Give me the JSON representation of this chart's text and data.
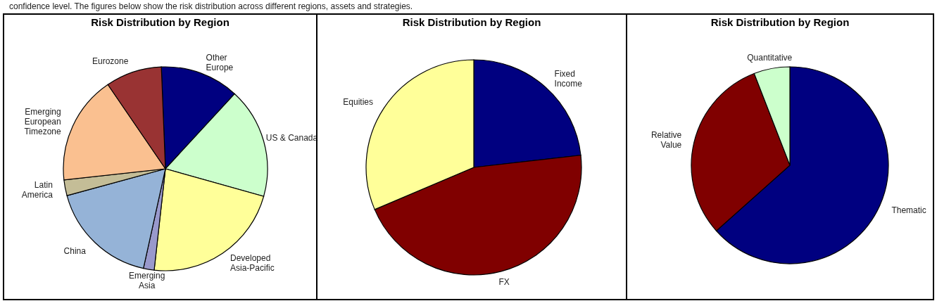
{
  "chart_data": [
    {
      "type": "pie",
      "title": "Risk Distribution by Region",
      "annotations": [
        "confidence level. The figures below show the risk distribution across different regions, assets and strategies."
      ],
      "categories": [
        "Other Europe",
        "US & Canada",
        "Developed Asia-Pacific",
        "Emerging Asia",
        "China",
        "Latin America",
        "Emerging European Timezone",
        "Eurozone"
      ],
      "values": [
        12.5,
        17.5,
        22.4,
        1.7,
        17.3,
        2.5,
        17.2,
        8.9
      ],
      "colors": [
        "#000080",
        "#ccffcc",
        "#ffff99",
        "#9999cc",
        "#95b3d7",
        "#c4bd97",
        "#fac090",
        "#993333"
      ]
    },
    {
      "type": "pie",
      "title": "Risk Distribution by Region",
      "categories": [
        "Fixed Income",
        "FX",
        "Equities"
      ],
      "values": [
        23.2,
        45.4,
        31.4
      ],
      "colors": [
        "#000080",
        "#800000",
        "#ffff99"
      ]
    },
    {
      "type": "pie",
      "title": "Risk Distribution by Region",
      "categories": [
        "Thematic",
        "Relative Value",
        "Quantitative"
      ],
      "values": [
        63.4,
        30.7,
        5.9
      ],
      "colors": [
        "#000080",
        "#800000",
        "#ccffcc"
      ]
    }
  ]
}
